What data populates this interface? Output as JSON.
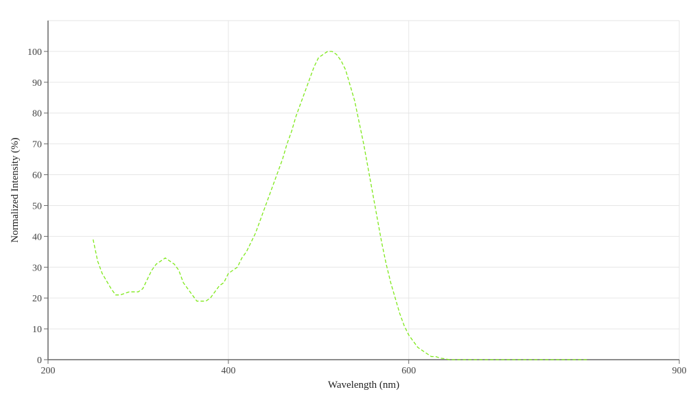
{
  "chart_data": {
    "type": "line",
    "title": "",
    "xlabel": "Wavelength (nm)",
    "ylabel": "Normalized Intensity (%)",
    "xlim": [
      200,
      900
    ],
    "ylim": [
      0,
      110
    ],
    "x_ticks": [
      200,
      400,
      600,
      900
    ],
    "y_ticks": [
      0,
      10,
      20,
      30,
      40,
      50,
      60,
      70,
      80,
      90,
      100
    ],
    "grid": true,
    "legend": "none",
    "series": [
      {
        "color": "#7ee81a",
        "line_style": "dashed",
        "x": [
          250,
          255,
          260,
          270,
          275,
          280,
          290,
          300,
          305,
          310,
          315,
          320,
          325,
          330,
          335,
          340,
          345,
          350,
          355,
          360,
          365,
          370,
          375,
          380,
          385,
          390,
          395,
          400,
          405,
          410,
          415,
          420,
          425,
          430,
          435,
          440,
          445,
          450,
          455,
          460,
          465,
          470,
          475,
          480,
          485,
          490,
          495,
          500,
          505,
          510,
          515,
          520,
          525,
          530,
          535,
          540,
          545,
          550,
          555,
          560,
          565,
          570,
          575,
          580,
          585,
          590,
          595,
          600,
          605,
          610,
          615,
          620,
          625,
          630,
          635,
          640,
          645,
          650,
          655,
          660,
          665,
          670,
          680,
          690,
          700,
          720,
          740,
          760,
          780,
          800
        ],
        "y": [
          39,
          32,
          28,
          23,
          21,
          21,
          22,
          22,
          23,
          26,
          29,
          31,
          32,
          33,
          32,
          31,
          29,
          25,
          23,
          21,
          19,
          19,
          19,
          20,
          22,
          24,
          25,
          28,
          29,
          30,
          33,
          35,
          38,
          41,
          45,
          49,
          53,
          57,
          61,
          65,
          70,
          74,
          79,
          83,
          87,
          91,
          95,
          98,
          99,
          100,
          100,
          99,
          97,
          94,
          89,
          84,
          77,
          70,
          62,
          54,
          46,
          38,
          31,
          25,
          20,
          15,
          11,
          8,
          6,
          4,
          3,
          2,
          1,
          1,
          0.5,
          0.3,
          0,
          0,
          0,
          0,
          0,
          0,
          0,
          0,
          0,
          0,
          0,
          0,
          0,
          0
        ]
      }
    ]
  }
}
